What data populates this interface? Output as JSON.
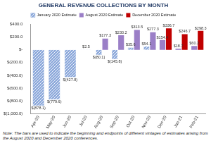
{
  "chart_data": {
    "type": "bar",
    "title": "GENERAL REVENUE COLLECTIONS BY MONTH",
    "annotations": [
      "Note: The bars are used to indicate the beginning and endpoints of different vintages of estimates arising from the August 2020 and December 2020 conferences."
    ],
    "categories": [
      "Apr-20",
      "May-20",
      "Jun-20",
      "Jul-20",
      "Aug-20",
      "Sep-20",
      "Oct-20",
      "Nov-20",
      "Dec-20",
      "Jan-21",
      "Feb-21"
    ],
    "series": [
      {
        "name": "January 2020 Estimate",
        "color": "#8eaadb",
        "values": [
          -878.1,
          -779.6,
          -427.8,
          2.5,
          -80.1,
          -145.8,
          35.6,
          54.1,
          null,
          null,
          null
        ],
        "value_labels": [
          "$(878.1)",
          "$(779.6)",
          "$(427.8)",
          "$2.5",
          "$(80.1)",
          "$(145.8)",
          "$35.6",
          "$54.1",
          null,
          null,
          null
        ]
      },
      {
        "name": "August 2020 Estimate",
        "color": "#9b7fc7",
        "values": [
          null,
          null,
          null,
          null,
          177.3,
          230.2,
          313.5,
          277.3,
          154.4,
          18.7,
          60.3
        ],
        "value_labels": [
          null,
          null,
          null,
          null,
          "$177.3",
          "$230.2",
          "$313.5",
          "$277.3",
          "$154.4",
          "$18.7",
          "$60.3"
        ]
      },
      {
        "name": "December 2020 Estimate",
        "color": "#c00000",
        "values": [
          null,
          null,
          null,
          null,
          null,
          null,
          null,
          null,
          336.7,
          246.7,
          298.3
        ],
        "value_labels": [
          null,
          null,
          null,
          null,
          null,
          null,
          null,
          null,
          "$336.7",
          "$246.7",
          "$298.3"
        ]
      }
    ],
    "ylim": [
      -1000,
      400
    ],
    "yticks": [
      {
        "value": -1000,
        "label": "$(1,000.0)"
      },
      {
        "value": -800,
        "label": "$(800.0)"
      },
      {
        "value": -600,
        "label": "$(600.0)"
      },
      {
        "value": -400,
        "label": "$(400.0)"
      },
      {
        "value": -200,
        "label": "$(200.0)"
      },
      {
        "value": 0,
        "label": "$-"
      },
      {
        "value": 200,
        "label": "$200.0"
      },
      {
        "value": 400,
        "label": "$400.0"
      }
    ],
    "grid": false,
    "legend": "top",
    "data_labels": true
  }
}
